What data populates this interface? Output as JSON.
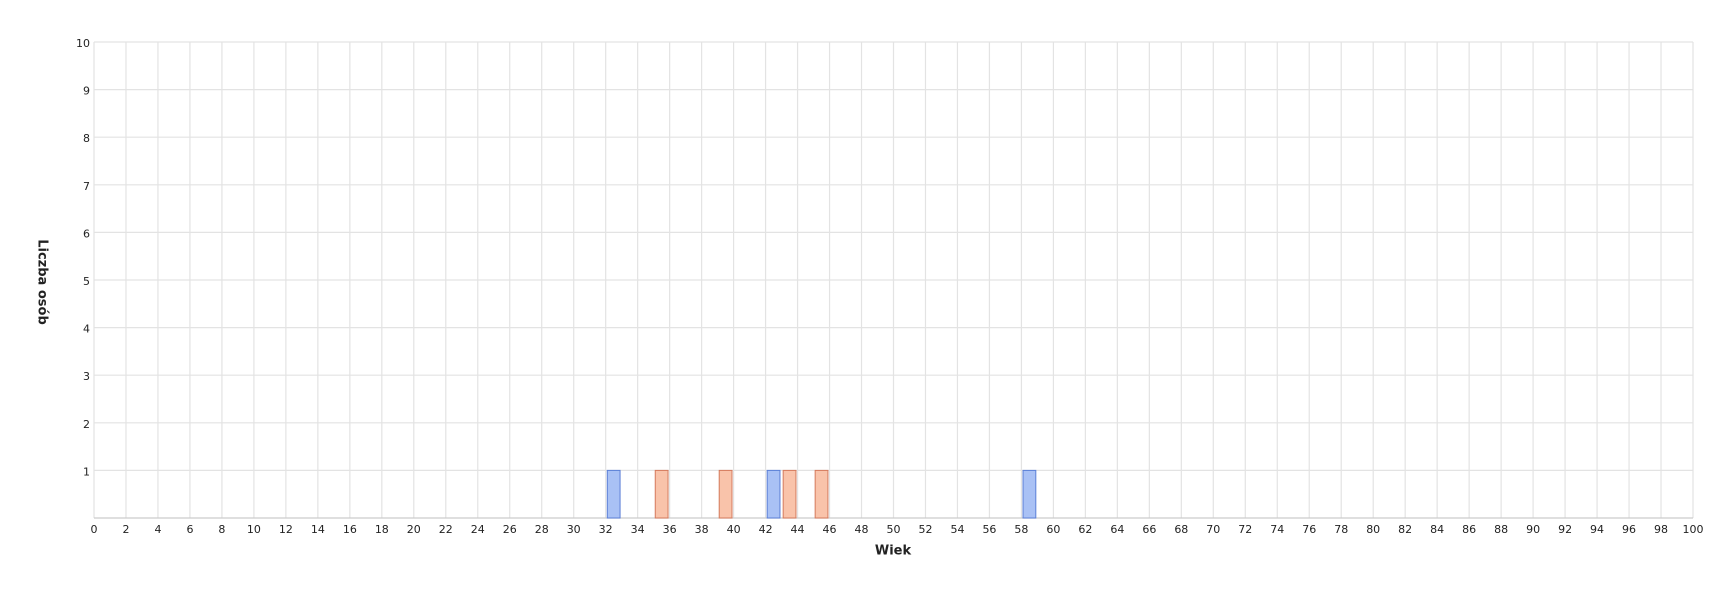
{
  "chart_data": {
    "type": "bar",
    "xlabel": "Wiek",
    "ylabel": "Liczba osób",
    "xlim": [
      0,
      100
    ],
    "ylim": [
      0,
      10
    ],
    "xticks": [
      0,
      2,
      4,
      6,
      8,
      10,
      12,
      14,
      16,
      18,
      20,
      22,
      24,
      26,
      28,
      30,
      32,
      34,
      36,
      38,
      40,
      42,
      44,
      46,
      48,
      50,
      52,
      54,
      56,
      58,
      60,
      62,
      64,
      66,
      68,
      70,
      72,
      74,
      76,
      78,
      80,
      82,
      84,
      86,
      88,
      90,
      92,
      94,
      96,
      98,
      100
    ],
    "yticks": [
      1,
      2,
      3,
      4,
      5,
      6,
      7,
      8,
      9,
      10
    ],
    "grid": true,
    "series": [
      {
        "color": "#a9c1f5",
        "edge": "#5b7fd6",
        "x": [
          32,
          42,
          58
        ],
        "values": [
          1,
          1,
          1
        ]
      },
      {
        "color": "#f9c3aa",
        "edge": "#d47a5c",
        "x": [
          35,
          39,
          43,
          45
        ],
        "values": [
          1,
          1,
          1,
          1
        ]
      }
    ]
  }
}
